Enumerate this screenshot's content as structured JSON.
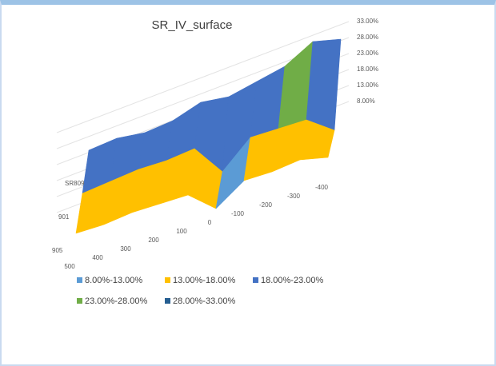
{
  "chart_data": {
    "type": "surface",
    "title": "SR_IV_surface",
    "categories": [
      "500",
      "400",
      "300",
      "200",
      "100",
      "0",
      "-100",
      "-200",
      "-300",
      "-400"
    ],
    "series": [
      {
        "name": "905",
        "values": [
          15,
          15,
          16,
          16,
          16,
          9,
          15,
          15,
          16,
          14
        ]
      },
      {
        "name": "901",
        "values": [
          17,
          18,
          19,
          19,
          20,
          10,
          18,
          18,
          18,
          12
        ]
      },
      {
        "name": "SR809",
        "values": [
          20,
          21,
          20,
          21,
          24,
          23,
          25,
          27,
          32,
          30
        ]
      }
    ],
    "zlim": [
      8,
      33
    ],
    "zticks": [
      {
        "value": 8,
        "label": "8.00%"
      },
      {
        "value": 13,
        "label": "13.00%"
      },
      {
        "value": 18,
        "label": "18.00%"
      },
      {
        "value": 23,
        "label": "23.00%"
      },
      {
        "value": 28,
        "label": "28.00%"
      },
      {
        "value": 33,
        "label": "33.00%"
      }
    ],
    "bands": [
      {
        "name": "8.00%-13.00%",
        "color": "#5b9bd5",
        "range": [
          8,
          13
        ]
      },
      {
        "name": "13.00%-18.00%",
        "color": "#ffc000",
        "range": [
          13,
          18
        ]
      },
      {
        "name": "18.00%-23.00%",
        "color": "#4472c4",
        "range": [
          18,
          23
        ]
      },
      {
        "name": "23.00%-28.00%",
        "color": "#70ad47",
        "range": [
          23,
          28
        ]
      },
      {
        "name": "28.00%-33.00%",
        "color": "#255e91",
        "range": [
          28,
          33
        ]
      }
    ],
    "legend": "bottom"
  }
}
